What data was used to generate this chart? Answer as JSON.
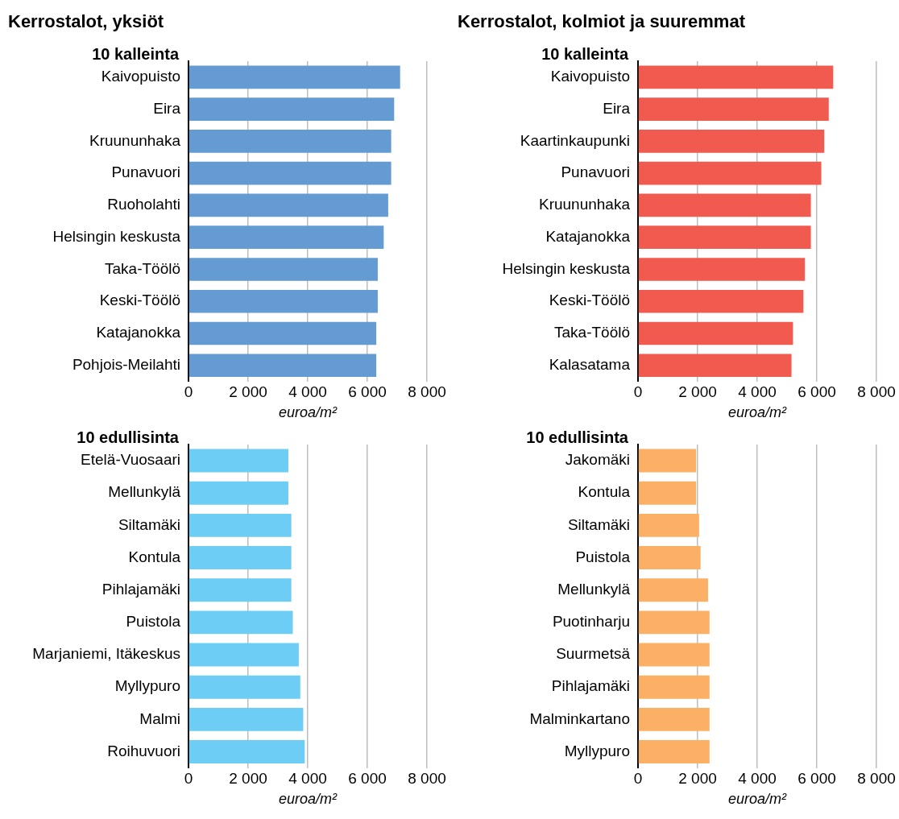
{
  "chart_data": [
    {
      "type": "bar",
      "orientation": "horizontal",
      "title": "Kerrostalot, yksiöt",
      "subtitle": "10 kalleinta",
      "xlabel": "euroa/m²",
      "categories": [
        "Kaivopuisto",
        "Eira",
        "Kruununhaka",
        "Punavuori",
        "Ruoholahti",
        "Helsingin keskusta",
        "Taka-Töölö",
        "Keski-Töölö",
        "Katajanokka",
        "Pohjois-Meilahti"
      ],
      "values": [
        7100,
        6900,
        6800,
        6800,
        6700,
        6550,
        6350,
        6350,
        6300,
        6300
      ],
      "color": "#659bd3",
      "xlim": [
        0,
        8000
      ],
      "xticks": [
        {
          "value": 0,
          "label": "0"
        },
        {
          "value": 2000,
          "label": "2 000"
        },
        {
          "value": 4000,
          "label": "4 000"
        },
        {
          "value": 6000,
          "label": "6 000"
        },
        {
          "value": 8000,
          "label": "8 000"
        }
      ],
      "grid": "x"
    },
    {
      "type": "bar",
      "orientation": "horizontal",
      "title": "Kerrostalot, kolmiot ja suuremmat",
      "subtitle": "10 kalleinta",
      "xlabel": "euroa/m²",
      "categories": [
        "Kaivopuisto",
        "Eira",
        "Kaartinkaupunki",
        "Punavuori",
        "Kruununhaka",
        "Katajanokka",
        "Helsingin keskusta",
        "Keski-Töölö",
        "Taka-Töölö",
        "Kalasatama"
      ],
      "values": [
        6550,
        6400,
        6250,
        6150,
        5800,
        5800,
        5600,
        5550,
        5200,
        5150
      ],
      "color": "#f15b4f",
      "xlim": [
        0,
        8000
      ],
      "xticks": [
        {
          "value": 0,
          "label": "0"
        },
        {
          "value": 2000,
          "label": "2 000"
        },
        {
          "value": 4000,
          "label": "4 000"
        },
        {
          "value": 6000,
          "label": "6 000"
        },
        {
          "value": 8000,
          "label": "8 000"
        }
      ],
      "grid": "x"
    },
    {
      "type": "bar",
      "orientation": "horizontal",
      "subtitle": "10 edullisinta",
      "xlabel": "euroa/m²",
      "categories": [
        "Etelä-Vuosaari",
        "Mellunkylä",
        "Siltamäki",
        "Kontula",
        "Pihlajamäki",
        "Puistola",
        "Marjaniemi, Itäkeskus",
        "Myllypuro",
        "Malmi",
        "Roihuvuori"
      ],
      "values": [
        3350,
        3350,
        3450,
        3450,
        3450,
        3500,
        3700,
        3750,
        3850,
        3900
      ],
      "color": "#6dcdf5",
      "xlim": [
        0,
        8000
      ],
      "xticks": [
        {
          "value": 0,
          "label": "0"
        },
        {
          "value": 2000,
          "label": "2 000"
        },
        {
          "value": 4000,
          "label": "4 000"
        },
        {
          "value": 6000,
          "label": "6 000"
        },
        {
          "value": 8000,
          "label": "8 000"
        }
      ],
      "grid": "x"
    },
    {
      "type": "bar",
      "orientation": "horizontal",
      "subtitle": "10 edullisinta",
      "xlabel": "euroa/m²",
      "categories": [
        "Jakomäki",
        "Kontula",
        "Siltamäki",
        "Puistola",
        "Mellunkylä",
        "Puotinharju",
        "Suurmetsä",
        "Pihlajamäki",
        "Malminkartano",
        "Myllypuro"
      ],
      "values": [
        1950,
        1950,
        2050,
        2100,
        2350,
        2400,
        2400,
        2400,
        2400,
        2400
      ],
      "color": "#fbb065",
      "xlim": [
        0,
        8000
      ],
      "xticks": [
        {
          "value": 0,
          "label": "0"
        },
        {
          "value": 2000,
          "label": "2 000"
        },
        {
          "value": 4000,
          "label": "4 000"
        },
        {
          "value": 6000,
          "label": "6 000"
        },
        {
          "value": 8000,
          "label": "8 000"
        }
      ],
      "grid": "x"
    }
  ]
}
